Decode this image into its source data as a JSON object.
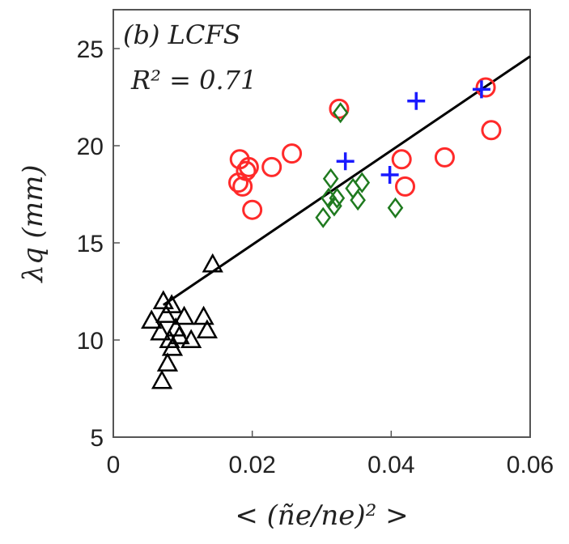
{
  "chart_data": {
    "type": "scatter",
    "panel_label": "(b) LCFS",
    "annotation": "R² = 0.71",
    "xlabel": "< (ñe/ne)² >",
    "ylabel": "λq (mm)",
    "xlim": [
      0,
      0.06
    ],
    "ylim": [
      5,
      27
    ],
    "xticks": [
      0,
      0.02,
      0.04,
      0.06
    ],
    "xtick_labels": [
      "0",
      "0.02",
      "0.04",
      "0.06"
    ],
    "yticks": [
      5,
      10,
      15,
      20,
      25
    ],
    "ytick_labels": [
      "5",
      "10",
      "15",
      "20",
      "25"
    ],
    "grid": false,
    "series": [
      {
        "marker": "triangle",
        "color": "#000000",
        "points": [
          [
            0.0055,
            11.0
          ],
          [
            0.0068,
            10.4
          ],
          [
            0.0072,
            12.0
          ],
          [
            0.0076,
            11.3
          ],
          [
            0.0078,
            8.8
          ],
          [
            0.0081,
            10.0
          ],
          [
            0.0084,
            11.8
          ],
          [
            0.009,
            10.6
          ],
          [
            0.0095,
            10.2
          ],
          [
            0.0102,
            11.2
          ],
          [
            0.0112,
            10.0
          ],
          [
            0.013,
            11.2
          ],
          [
            0.0135,
            10.5
          ],
          [
            0.0143,
            13.9
          ],
          [
            0.007,
            7.9
          ],
          [
            0.0085,
            9.6
          ]
        ]
      },
      {
        "marker": "circle",
        "color": "#ff2a2a",
        "points": [
          [
            0.018,
            18.1
          ],
          [
            0.0182,
            19.3
          ],
          [
            0.0186,
            17.9
          ],
          [
            0.0191,
            18.7
          ],
          [
            0.0195,
            18.9
          ],
          [
            0.02,
            16.7
          ],
          [
            0.0228,
            18.9
          ],
          [
            0.0257,
            19.6
          ],
          [
            0.0325,
            21.9
          ],
          [
            0.0415,
            19.3
          ],
          [
            0.042,
            17.9
          ],
          [
            0.0477,
            19.4
          ],
          [
            0.0536,
            23.0
          ],
          [
            0.0544,
            20.8
          ]
        ]
      },
      {
        "marker": "diamond",
        "color": "#1f7a1f",
        "points": [
          [
            0.0302,
            16.3
          ],
          [
            0.031,
            17.3
          ],
          [
            0.0313,
            18.3
          ],
          [
            0.0318,
            16.9
          ],
          [
            0.0322,
            17.3
          ],
          [
            0.0327,
            21.7
          ],
          [
            0.0345,
            17.8
          ],
          [
            0.0352,
            17.2
          ],
          [
            0.0358,
            18.1
          ],
          [
            0.0406,
            16.8
          ]
        ]
      },
      {
        "marker": "plus",
        "color": "#1a1aff",
        "points": [
          [
            0.0334,
            19.2
          ],
          [
            0.0398,
            18.5
          ],
          [
            0.0436,
            22.3
          ],
          [
            0.053,
            22.9
          ]
        ]
      }
    ],
    "fit_line": {
      "color": "#000000",
      "x": [
        0.0072,
        0.06
      ],
      "y": [
        11.8,
        24.6
      ]
    }
  }
}
